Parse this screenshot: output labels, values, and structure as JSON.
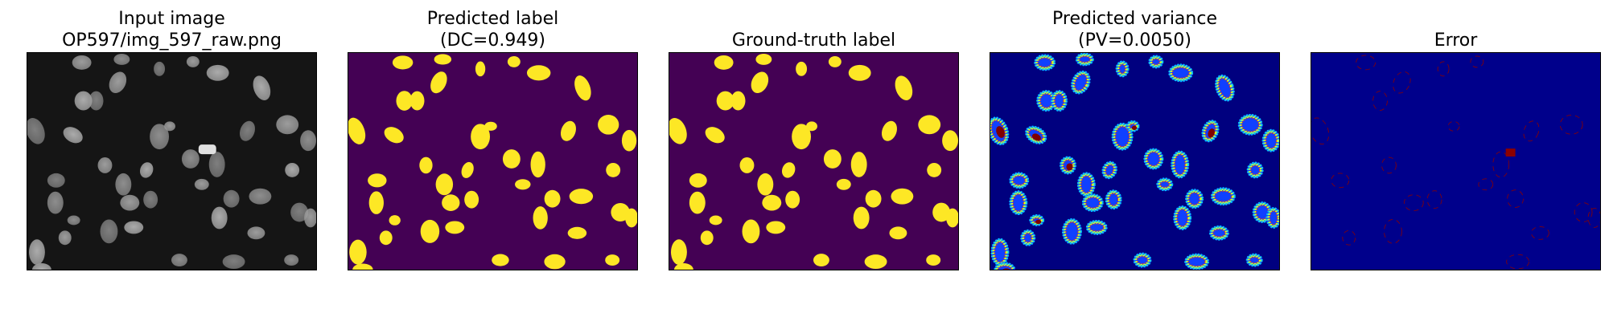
{
  "colors": {
    "raw_background": "#151515",
    "nucleus_gray_light": "#b8b8b8",
    "nucleus_gray_mid": "#8e8e8e",
    "label_background": "#440154",
    "label_foreground": "#fde725",
    "variance_background": "#00007f",
    "variance_hot": "#7f0000",
    "error_background": "#00008b",
    "error_edge": "#8b0000"
  },
  "panels": [
    {
      "id": "input-image",
      "title_lines": [
        "Input image",
        "OP597/img_597_raw.png"
      ]
    },
    {
      "id": "predicted-label",
      "title_lines": [
        "Predicted label",
        "(DC=0.949)"
      ]
    },
    {
      "id": "ground-truth-label",
      "title_lines": [
        "Ground-truth label"
      ]
    },
    {
      "id": "predicted-variance",
      "title_lines": [
        "Predicted variance",
        "(PV=0.0050)"
      ]
    },
    {
      "id": "error",
      "title_lines": [
        "Error"
      ]
    }
  ]
}
